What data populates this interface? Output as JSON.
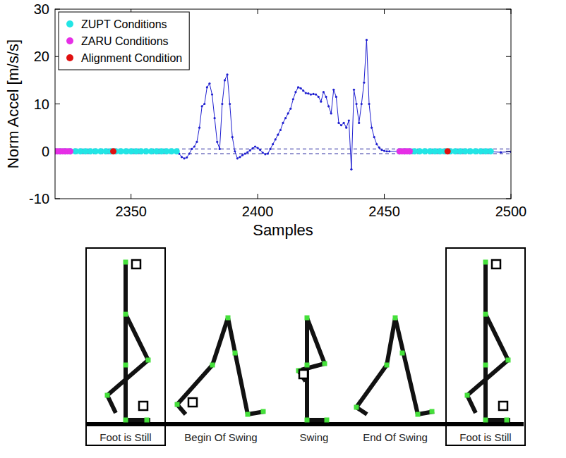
{
  "chart_data": {
    "type": "line",
    "x_label": "Samples",
    "y_label": "Norm Accel [m/s/s]",
    "xlim": [
      2320,
      2500
    ],
    "xticks": [
      2350,
      2400,
      2450,
      2500
    ],
    "ylim": [
      -10,
      30
    ],
    "yticks": [
      -10,
      0,
      10,
      20,
      30
    ],
    "legend": "upper left",
    "threshold_lines": [
      -0.5,
      0.5
    ],
    "series": [
      {
        "type": "line",
        "color": "#1f1fd0",
        "marker": "dot",
        "line_style": "solid",
        "x": [
          2320,
          2324,
          2328,
          2332,
          2336,
          2340,
          2344,
          2348,
          2352,
          2356,
          2360,
          2364,
          2368,
          2369,
          2370,
          2371,
          2372,
          2373,
          2374,
          2375,
          2376,
          2377,
          2378,
          2379,
          2380,
          2381,
          2382,
          2383,
          2384,
          2385,
          2386,
          2387,
          2388,
          2389,
          2390,
          2391,
          2392,
          2393,
          2394,
          2395,
          2396,
          2397,
          2398,
          2399,
          2400,
          2401,
          2402,
          2403,
          2404,
          2405,
          2406,
          2407,
          2408,
          2409,
          2410,
          2411,
          2412,
          2413,
          2414,
          2415,
          2416,
          2417,
          2418,
          2419,
          2420,
          2421,
          2422,
          2423,
          2424,
          2425,
          2426,
          2427,
          2428,
          2429,
          2430,
          2431,
          2432,
          2433,
          2434,
          2435,
          2436,
          2437,
          2438,
          2439,
          2440,
          2441,
          2442,
          2443,
          2444,
          2445,
          2446,
          2447,
          2448,
          2449,
          2450,
          2451,
          2452,
          2456,
          2460,
          2464,
          2468,
          2472,
          2476,
          2480,
          2484,
          2488,
          2492,
          2496,
          2500
        ],
        "values": [
          0.1,
          -0.1,
          0,
          0.1,
          0,
          -0.1,
          0.1,
          0,
          -0.1,
          0.1,
          0,
          -0.1,
          0,
          -0.5,
          -1.2,
          -1.5,
          -1.3,
          -0.5,
          0.5,
          1,
          2,
          5,
          9.5,
          10,
          13.5,
          14.3,
          12,
          7,
          2,
          0.5,
          10,
          15,
          16.2,
          10,
          3,
          0,
          -1.5,
          -1.2,
          -0.8,
          -0.5,
          -0.2,
          0.2,
          0.6,
          1,
          0.7,
          0.3,
          -0.3,
          -0.6,
          -0.5,
          0.5,
          1.5,
          2.5,
          3.5,
          4.5,
          6,
          7,
          8,
          9,
          11,
          12.5,
          13.5,
          13.3,
          12.8,
          12.3,
          12.2,
          12,
          12.1,
          12,
          11.5,
          10.5,
          12.5,
          11.5,
          9.5,
          8,
          13,
          11.5,
          6,
          5.5,
          6,
          5,
          6.5,
          -3.8,
          13,
          10,
          6,
          10,
          14.5,
          23.5,
          10,
          5,
          3,
          1.5,
          0.8,
          0.3,
          0.1,
          0,
          0,
          0,
          0.1,
          -0.1,
          0,
          0.1,
          0,
          -0.1,
          0,
          0.1,
          -0.1,
          -0.2,
          -0.1
        ]
      },
      {
        "name": "ZUPT Conditions",
        "type": "scatter",
        "color": "#22e5e5",
        "marker": "circle",
        "x": [
          2320,
          2322,
          2324,
          2326,
          2328,
          2330,
          2332,
          2334,
          2336,
          2338,
          2340,
          2342,
          2344,
          2346,
          2348,
          2350,
          2352,
          2354,
          2356,
          2358,
          2360,
          2362,
          2364,
          2366,
          2368,
          2456,
          2458,
          2460,
          2462,
          2464,
          2466,
          2468,
          2470,
          2472,
          2474,
          2476,
          2478,
          2480,
          2482,
          2484,
          2486,
          2488,
          2490,
          2492
        ],
        "values": [
          0,
          0,
          0,
          0,
          0,
          0,
          0,
          0,
          0,
          0,
          0,
          0,
          0,
          0,
          0,
          0,
          0,
          0,
          0,
          0,
          0,
          0,
          0,
          0,
          0,
          0,
          0,
          0,
          0,
          0,
          0,
          0,
          0,
          0,
          0,
          0,
          0,
          0,
          0,
          0,
          0,
          0,
          0,
          0
        ]
      },
      {
        "name": "ZARU Conditions",
        "type": "scatter",
        "color": "#e62ee6",
        "marker": "circle",
        "x": [
          2320,
          2321,
          2322,
          2323,
          2324,
          2325,
          2326,
          2456,
          2457,
          2458,
          2459,
          2460
        ],
        "values": [
          0,
          0,
          0,
          0,
          0,
          0,
          0,
          0,
          0,
          0,
          0,
          0
        ]
      },
      {
        "name": "Alignment Condition",
        "type": "scatter",
        "color": "#e01010",
        "marker": "circle",
        "x": [
          2343,
          2475
        ],
        "values": [
          0,
          0
        ]
      }
    ]
  },
  "diagram": {
    "phases": [
      {
        "label": "Foot is Still",
        "highlighted": true
      },
      {
        "label": "Begin Of Swing",
        "highlighted": false
      },
      {
        "label": "Swing",
        "highlighted": false
      },
      {
        "label": "End Of Swing",
        "highlighted": false
      },
      {
        "label": "Foot is Still",
        "highlighted": true
      }
    ]
  }
}
